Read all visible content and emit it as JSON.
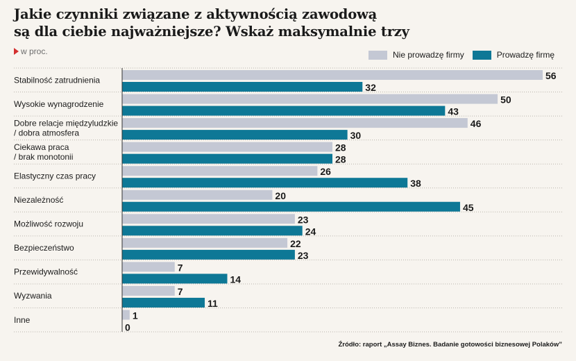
{
  "title_lines": [
    "Jakie czynniki związane z aktywnością zawodową",
    "są dla ciebie najważniejsze? Wskaż maksymalnie trzy"
  ],
  "subtitle": "w proc.",
  "source": "Źródło: raport „Assay Biznes. Badanie gotowości biznesowej Polaków”",
  "colors": {
    "nie_prowadze": "#c4c8d4",
    "prowadze": "#0e7896",
    "axis": "#333333",
    "separator": "#b9b4ac"
  },
  "chart_data": {
    "type": "bar",
    "orientation": "horizontal",
    "categories": [
      [
        "Stabilność zatrudnienia"
      ],
      [
        "Wysokie wynagrodzenie"
      ],
      [
        "Dobre relacje międzyludzkie",
        "/ dobra atmosfera"
      ],
      [
        "Ciekawa praca",
        "/ brak monotonii"
      ],
      [
        "Elastyczny czas pracy"
      ],
      [
        "Niezależność"
      ],
      [
        "Możliwość rozwoju"
      ],
      [
        "Bezpieczeństwo"
      ],
      [
        "Przewidywalność"
      ],
      [
        "Wyzwania"
      ],
      [
        "Inne"
      ]
    ],
    "series": [
      {
        "name": "Nie prowadzę firmy",
        "color": "#c4c8d4",
        "values": [
          56,
          50,
          46,
          28,
          26,
          20,
          23,
          22,
          7,
          7,
          1
        ]
      },
      {
        "name": "Prowadzę firmę",
        "color": "#0e7896",
        "values": [
          32,
          43,
          30,
          28,
          38,
          45,
          24,
          23,
          14,
          11,
          0
        ]
      }
    ],
    "xlim": [
      0,
      56
    ],
    "legend_position": "top-right",
    "grid": false
  }
}
